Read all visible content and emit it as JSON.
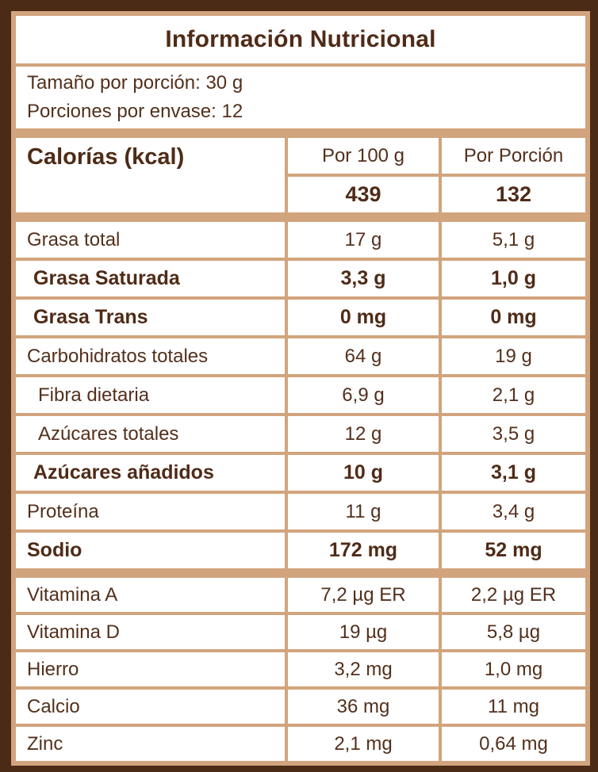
{
  "title": "Información Nutricional",
  "serving": {
    "size_line": "Tamaño por porción: 30 g",
    "count_line": "Porciones por envase: 12"
  },
  "calories": {
    "label": "Calorías (kcal)",
    "per_100g_header": "Por 100 g",
    "per_portion_header": "Por Porción",
    "per_100g_value": "439",
    "per_portion_value": "132"
  },
  "rows": [
    {
      "label": "Grasa total",
      "per_100g": "17 g",
      "per_portion": "5,1 g"
    },
    {
      "label": "Grasa Saturada",
      "per_100g": "3,3 g",
      "per_portion": "1,0 g"
    },
    {
      "label": "Grasa Trans",
      "per_100g": "0 mg",
      "per_portion": "0 mg"
    },
    {
      "label": "Carbohidratos totales",
      "per_100g": "64 g",
      "per_portion": "19 g"
    },
    {
      "label": "Fibra dietaria",
      "per_100g": "6,9 g",
      "per_portion": "2,1 g"
    },
    {
      "label": "Azúcares totales",
      "per_100g": "12 g",
      "per_portion": "3,5 g"
    },
    {
      "label": "Azúcares añadidos",
      "per_100g": "10 g",
      "per_portion": "3,1 g"
    },
    {
      "label": "Proteína",
      "per_100g": "11 g",
      "per_portion": "3,4 g"
    },
    {
      "label": "Sodio",
      "per_100g": "172 mg",
      "per_portion": "52 mg"
    }
  ],
  "vitamins": [
    {
      "label": "Vitamina A",
      "per_100g": "7,2 µg ER",
      "per_portion": "2,2 µg ER"
    },
    {
      "label": "Vitamina D",
      "per_100g": "19 µg",
      "per_portion": "5,8 µg"
    },
    {
      "label": "Hierro",
      "per_100g": "3,2 mg",
      "per_portion": "1,0 mg"
    },
    {
      "label": "Calcio",
      "per_100g": "36 mg",
      "per_portion": "11 mg"
    },
    {
      "label": "Zinc",
      "per_100g": "2,1 mg",
      "per_portion": "0,64 mg"
    }
  ],
  "colors": {
    "frame_brown": "#4b2a16",
    "grid_tan": "#d2a47d",
    "cell_white": "#ffffff",
    "text_brown": "#53301c",
    "bold_text_brown": "#4f2b17"
  }
}
